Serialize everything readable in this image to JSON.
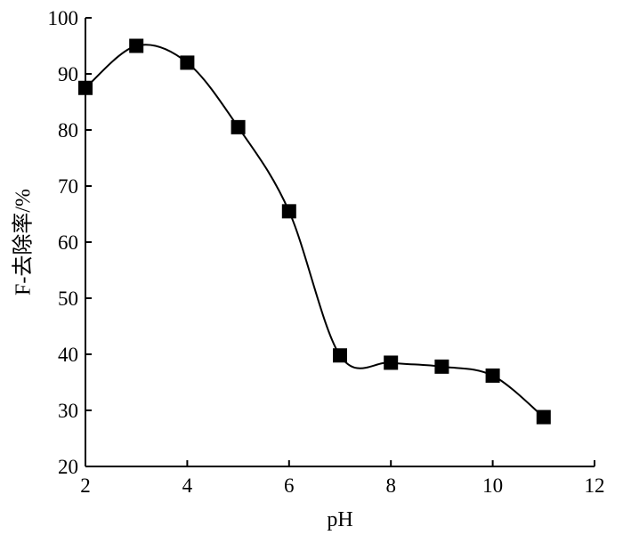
{
  "chart_data": {
    "type": "line",
    "title": "",
    "xlabel": "pH",
    "ylabel": "F-去除率/%",
    "xlim": [
      2,
      12
    ],
    "ylim": [
      20,
      100
    ],
    "x_ticks": [
      2,
      4,
      6,
      8,
      10,
      12
    ],
    "y_ticks": [
      20,
      30,
      40,
      50,
      60,
      70,
      80,
      90,
      100
    ],
    "x_tick_labels": [
      "2",
      "4",
      "6",
      "8",
      "10",
      "12"
    ],
    "y_tick_labels": [
      "20",
      "30",
      "40",
      "50",
      "60",
      "70",
      "80",
      "90",
      "100"
    ],
    "grid": false,
    "legend": "none",
    "marker": "filled-square",
    "line_style": "smooth",
    "colors": {
      "line": "#000000",
      "marker": "#000000",
      "axis": "#000000"
    },
    "series": [
      {
        "x": [
          2,
          3,
          4,
          5,
          6,
          7,
          8,
          9,
          10,
          11
        ],
        "values": [
          87.5,
          95,
          92,
          80.5,
          65.5,
          39.8,
          38.5,
          37.8,
          36.2,
          28.8
        ]
      }
    ]
  }
}
